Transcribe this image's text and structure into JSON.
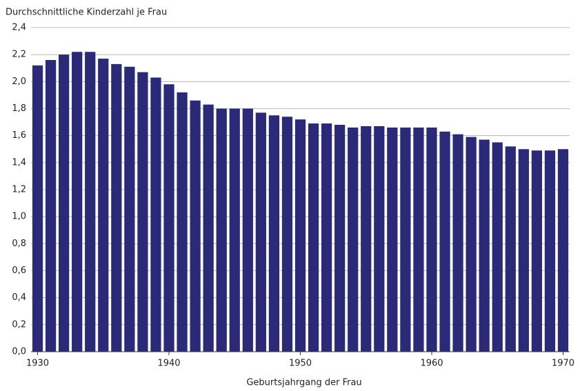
{
  "chart_data": {
    "type": "bar",
    "ylabel": "Durchschnittliche Kinderzahl je Frau",
    "xlabel": "Geburtsjahrgang der Frau",
    "x": [
      1930,
      1931,
      1932,
      1933,
      1934,
      1935,
      1936,
      1937,
      1938,
      1939,
      1940,
      1941,
      1942,
      1943,
      1944,
      1945,
      1946,
      1947,
      1948,
      1949,
      1950,
      1951,
      1952,
      1953,
      1954,
      1955,
      1956,
      1957,
      1958,
      1959,
      1960,
      1961,
      1962,
      1963,
      1964,
      1965,
      1966,
      1967,
      1968,
      1969,
      1970
    ],
    "values": [
      2.12,
      2.16,
      2.2,
      2.22,
      2.22,
      2.17,
      2.13,
      2.11,
      2.07,
      2.03,
      1.98,
      1.92,
      1.86,
      1.83,
      1.8,
      1.8,
      1.8,
      1.77,
      1.75,
      1.74,
      1.72,
      1.69,
      1.69,
      1.68,
      1.66,
      1.67,
      1.67,
      1.66,
      1.66,
      1.66,
      1.66,
      1.63,
      1.61,
      1.59,
      1.57,
      1.55,
      1.52,
      1.5,
      1.49,
      1.49,
      1.5
    ],
    "color": "#2b2a78",
    "xlim": [
      1929.5,
      1970.5
    ],
    "xticks": [
      1930,
      1940,
      1950,
      1960,
      1970
    ],
    "ylim": [
      0,
      2.4
    ],
    "yticks": [
      {
        "value": 0,
        "label": "0,0"
      },
      {
        "value": 0.2,
        "label": "0,2"
      },
      {
        "value": 0.4,
        "label": "0,4"
      },
      {
        "value": 0.6,
        "label": "0,6"
      },
      {
        "value": 0.8,
        "label": "0,8"
      },
      {
        "value": 1.0,
        "label": "1,0"
      },
      {
        "value": 1.2,
        "label": "1,2"
      },
      {
        "value": 1.4,
        "label": "1,4"
      },
      {
        "value": 1.6,
        "label": "1,6"
      },
      {
        "value": 1.8,
        "label": "1,8"
      },
      {
        "value": 2.0,
        "label": "2,0"
      },
      {
        "value": 2.2,
        "label": "2,2"
      },
      {
        "value": 2.4,
        "label": "2,4"
      }
    ],
    "grid": true
  }
}
